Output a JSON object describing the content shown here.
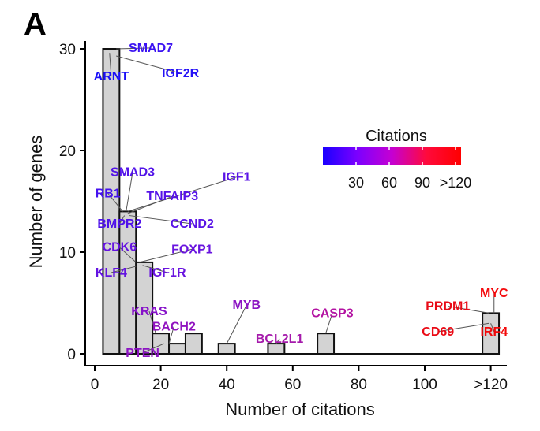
{
  "panel_label": "A",
  "chart_data": {
    "type": "bar",
    "xlabel": "Number of citations",
    "ylabel": "Number of genes",
    "x_ticks": [
      {
        "value": 0,
        "label": "0"
      },
      {
        "value": 20,
        "label": "20"
      },
      {
        "value": 40,
        "label": "40"
      },
      {
        "value": 60,
        "label": "60"
      },
      {
        "value": 80,
        "label": "80"
      },
      {
        "value": 100,
        "label": "100"
      },
      {
        "value": 120,
        "label": ">120"
      }
    ],
    "y_ticks": [
      0,
      10,
      20,
      30
    ],
    "xlim": [
      -3,
      127
    ],
    "ylim": [
      0,
      31
    ],
    "bin_width": 5,
    "bars": [
      {
        "x0": 2.5,
        "count": 30
      },
      {
        "x0": 7.5,
        "count": 14
      },
      {
        "x0": 12.5,
        "count": 9
      },
      {
        "x0": 17.5,
        "count": 2
      },
      {
        "x0": 22.5,
        "count": 1
      },
      {
        "x0": 27.5,
        "count": 2
      },
      {
        "x0": 37.5,
        "count": 1
      },
      {
        "x0": 52.5,
        "count": 1
      },
      {
        "x0": 67.5,
        "count": 2
      },
      {
        "x0": 117.5,
        "count": 4
      }
    ],
    "genes": [
      {
        "name": "SMAD7",
        "color": "#3b12f2",
        "tx": 17,
        "ty": 29.7,
        "ax": 6.5,
        "ay": 30
      },
      {
        "name": "ARNT",
        "color": "#1a0ff8",
        "tx": 5,
        "ty": 26.9,
        "ax": 4.5,
        "ay": 29.6
      },
      {
        "name": "IGF2R",
        "color": "#2410f6",
        "tx": 26,
        "ty": 27.2,
        "ax": 6.5,
        "ay": 29.3
      },
      {
        "name": "SMAD3",
        "color": "#5213e8",
        "tx": 11.5,
        "ty": 17.5,
        "ax": 9.5,
        "ay": 14
      },
      {
        "name": "IGF1",
        "color": "#5a13e6",
        "tx": 43,
        "ty": 17.0,
        "ax": 10,
        "ay": 14
      },
      {
        "name": "RB1",
        "color": "#4512ef",
        "tx": 4,
        "ty": 15.4,
        "ax": 8.5,
        "ay": 14
      },
      {
        "name": "TNFAIP3",
        "color": "#5613e7",
        "tx": 23.5,
        "ty": 15.1,
        "ax": 10,
        "ay": 13.8
      },
      {
        "name": "BMPR2",
        "color": "#4f12ea",
        "tx": 7.5,
        "ty": 12.4,
        "ax": 9,
        "ay": 13.6
      },
      {
        "name": "CCND2",
        "color": "#5813e6",
        "tx": 29.5,
        "ty": 12.4,
        "ax": 10.5,
        "ay": 13.6
      },
      {
        "name": "CDK6",
        "color": "#6513e0",
        "tx": 7.5,
        "ty": 10.1,
        "ax": 12.5,
        "ay": 9
      },
      {
        "name": "FOXP1",
        "color": "#6914df",
        "tx": 29.5,
        "ty": 9.9,
        "ax": 13.5,
        "ay": 9
      },
      {
        "name": "KLF4",
        "color": "#6313e1",
        "tx": 5,
        "ty": 7.6,
        "ax": 12.5,
        "ay": 8.6
      },
      {
        "name": "IGF1R",
        "color": "#6914df",
        "tx": 22,
        "ty": 7.6,
        "ax": 14.5,
        "ay": 8.7
      },
      {
        "name": "KRAS",
        "color": "#8612c9",
        "tx": 16.5,
        "ty": 3.8,
        "ax": 18.5,
        "ay": 2
      },
      {
        "name": "MYB",
        "color": "#8c14c3",
        "tx": 46,
        "ty": 4.4,
        "ax": 40,
        "ay": 1
      },
      {
        "name": "CASP3",
        "color": "#b312a2",
        "tx": 72,
        "ty": 3.6,
        "ax": 70,
        "ay": 2
      },
      {
        "name": "BACH2",
        "color": "#9013bf",
        "tx": 24,
        "ty": 2.3,
        "ax": 22.5,
        "ay": 1
      },
      {
        "name": "BCL2L1",
        "color": "#a51aab",
        "tx": 56,
        "ty": 1.1,
        "ax": 55,
        "ay": 1
      },
      {
        "name": "PTEN",
        "color": "#8c14c3",
        "tx": 14.5,
        "ty": -0.3,
        "ax": 21,
        "ay": 1
      },
      {
        "name": "MYC",
        "color": "#f4080b",
        "tx": 121,
        "ty": 5.6,
        "ax": 121,
        "ay": 4
      },
      {
        "name": "PRDM1",
        "color": "#e80b17",
        "tx": 107,
        "ty": 4.3,
        "ax": 119.5,
        "ay": 4
      },
      {
        "name": "CD69",
        "color": "#ea0a15",
        "tx": 104,
        "ty": 1.8,
        "ax": 119.5,
        "ay": 3
      },
      {
        "name": "IRF4",
        "color": "#f20809",
        "tx": 121,
        "ty": 1.8,
        "ax": 120,
        "ay": 3
      }
    ],
    "legend": {
      "title": "Citations",
      "colors": [
        "#1a00ff",
        "#7c00ff",
        "#c500d2",
        "#ff0a3c",
        "#ff0000"
      ],
      "ticks": [
        {
          "value": 30,
          "label": "30"
        },
        {
          "value": 60,
          "label": "60"
        },
        {
          "value": 90,
          "label": "90"
        },
        {
          "value": 120,
          "label": ">120"
        }
      ],
      "range": [
        0,
        125
      ]
    }
  }
}
